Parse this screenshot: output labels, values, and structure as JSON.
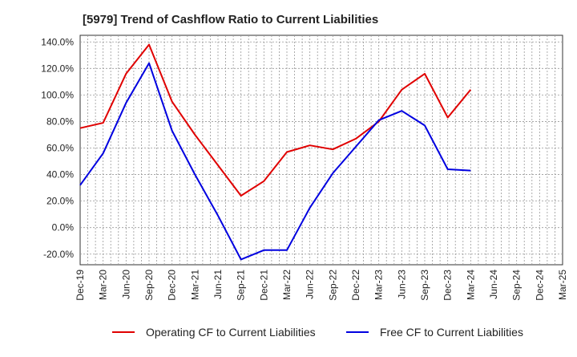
{
  "chart_data": {
    "type": "line",
    "title": "[5979]  Trend of Cashflow Ratio to Current Liabilities",
    "xlabel": "",
    "ylabel": "",
    "ylim": [
      -28,
      145
    ],
    "y_ticks": [
      -20,
      0,
      20,
      40,
      60,
      80,
      100,
      120,
      140
    ],
    "y_tick_labels": [
      "-20.0%",
      "0.0%",
      "20.0%",
      "40.0%",
      "60.0%",
      "80.0%",
      "100.0%",
      "120.0%",
      "140.0%"
    ],
    "x": [
      "Dec-19",
      "Mar-20",
      "Jun-20",
      "Sep-20",
      "Dec-20",
      "Mar-21",
      "Jun-21",
      "Sep-21",
      "Dec-21",
      "Mar-22",
      "Jun-22",
      "Sep-22",
      "Dec-22",
      "Mar-23",
      "Jun-23",
      "Sep-23",
      "Dec-23",
      "Mar-24",
      "Jun-24",
      "Sep-24",
      "Dec-24",
      "Mar-25"
    ],
    "grid": true,
    "legend_position": "bottom",
    "series": [
      {
        "name": "Operating CF to Current Liabilities",
        "color": "#e00000",
        "values": [
          75,
          79,
          116,
          138,
          95,
          70,
          47,
          24,
          35,
          57,
          62,
          59,
          67,
          80,
          104,
          116,
          83,
          104,
          null,
          null,
          null,
          null
        ]
      },
      {
        "name": "Free CF to Current Liabilities",
        "color": "#0000e0",
        "values": [
          32,
          56,
          94,
          124,
          73,
          40,
          9,
          -24,
          -17,
          -17,
          15,
          41,
          61,
          81,
          88,
          77,
          44,
          43,
          null,
          null,
          null,
          null
        ]
      }
    ]
  }
}
